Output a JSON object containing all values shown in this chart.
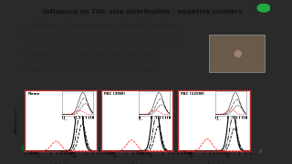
{
  "title": "Influence on TiO₂ size distribution - negative clusters",
  "bullets": [
    "For 125 W plasma, TiO₂ concentration increases by 59% and 265% (14 and 29 ppm)",
    "Promotes further growth of particles. Dₚ increases by 28% and 43% (14 and 29 ppm)",
    "At higher feed rates, TiO₂ size shifts towards smaller mobility diameters",
    "Mobility diameter decreases by 6%, 8%, and 13% (43, 58, and 72 ppm)"
  ],
  "panel_titles": [
    "Flame",
    "PAC (30W)",
    "PAC (125W)"
  ],
  "bg_outer": "#2a2a2a",
  "bg_slide": "#f5f2ee",
  "border_color": "#b03030",
  "title_color": "#111111",
  "bullet_color": "#222222",
  "footer_color": "#666666",
  "page_num": "8",
  "logo_green": "#006633",
  "logo_orange": "#f47920",
  "webcam_bg": "#6a5a4a"
}
